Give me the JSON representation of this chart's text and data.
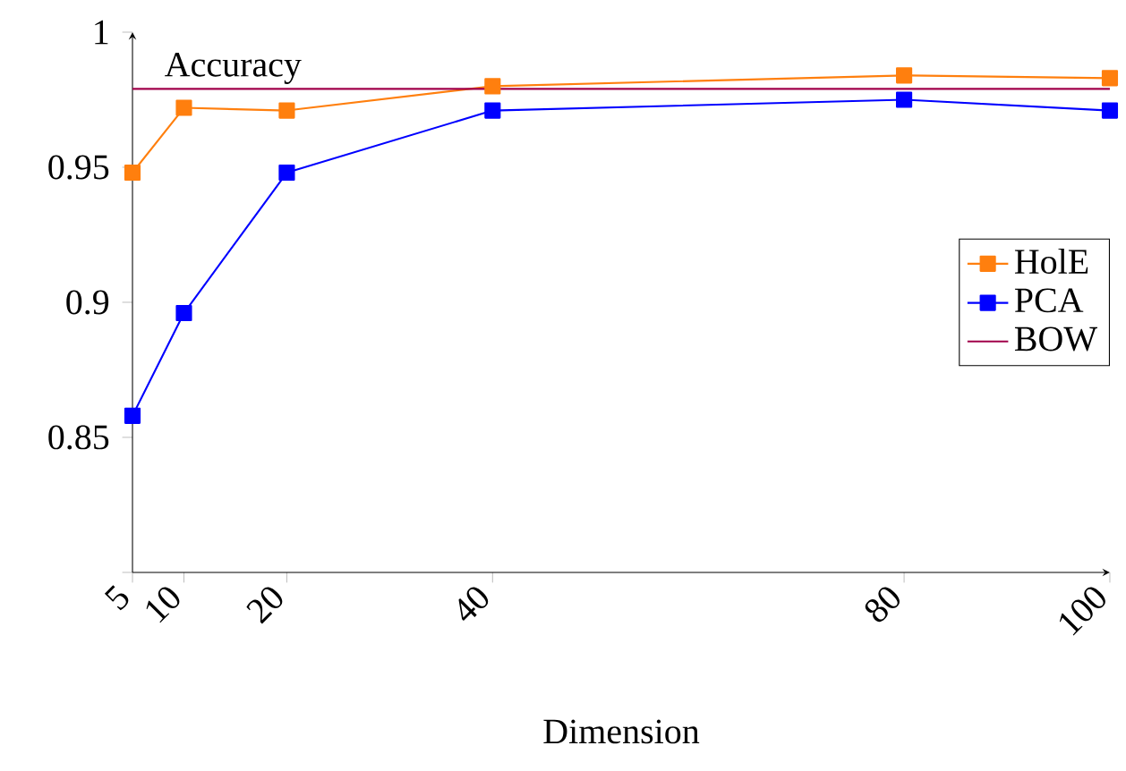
{
  "chart_data": {
    "type": "line",
    "ylabel": "Accuracy",
    "xlabel": "Dimension",
    "x": [
      5,
      10,
      20,
      40,
      80,
      100
    ],
    "series": [
      {
        "name": "HolE",
        "color": "#ff7f0e",
        "values": [
          0.948,
          0.972,
          0.971,
          0.98,
          0.984,
          0.983
        ]
      },
      {
        "name": "PCA",
        "color": "#0000ff",
        "values": [
          0.858,
          0.896,
          0.948,
          0.971,
          0.975,
          0.971
        ]
      },
      {
        "name": "BOW",
        "color": "#a0004a",
        "values": [
          0.979,
          0.979,
          0.979,
          0.979,
          0.979,
          0.979
        ],
        "marker": "none"
      }
    ],
    "xlim": [
      5,
      100
    ],
    "xticks": [
      5,
      10,
      20,
      40,
      80,
      100
    ],
    "ylim": [
      0.8,
      1
    ],
    "yticks": [
      {
        "value": 0.8,
        "label": null
      },
      {
        "value": 0.85,
        "label": "0.85"
      },
      {
        "value": 0.9,
        "label": "0.9"
      },
      {
        "value": 0.95,
        "label": "0.95"
      },
      {
        "value": 1,
        "label": "1"
      }
    ],
    "marker": "square",
    "legend": "right",
    "grid": false
  }
}
